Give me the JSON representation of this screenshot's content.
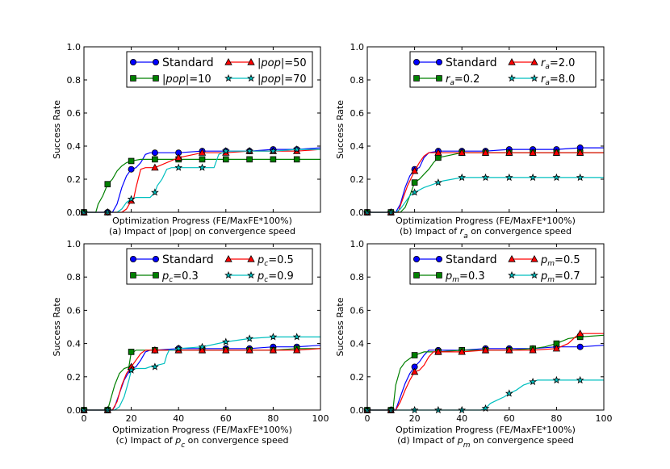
{
  "chart_data": [
    {
      "type": "line",
      "title": "",
      "xlabel": "Optimization Progress (FE/MaxFE*100%)",
      "ylabel": "Success Rate",
      "caption": "(a) Impact of |pop| on convergence speed",
      "xlim": [
        0,
        100
      ],
      "ylim": [
        0,
        1.0
      ],
      "x_ticks": [
        "0",
        "20",
        "40",
        "60",
        "80",
        "100"
      ],
      "y_ticks": [
        "0.0",
        "0.2",
        "0.4",
        "0.6",
        "0.8",
        "1.0"
      ],
      "show_x_tick_labels": false,
      "legend": "top-right",
      "series": [
        {
          "name": "Standard",
          "color": "#0000ff",
          "marker": "circle",
          "x": [
            0,
            10,
            12,
            14,
            16,
            18,
            20,
            22,
            24,
            26,
            28,
            30,
            40,
            50,
            60,
            70,
            80,
            90,
            100
          ],
          "y": [
            0,
            0,
            0,
            0.05,
            0.15,
            0.22,
            0.26,
            0.27,
            0.3,
            0.35,
            0.36,
            0.36,
            0.36,
            0.37,
            0.37,
            0.37,
            0.38,
            0.38,
            0.39
          ]
        },
        {
          "name": "|pop|=10",
          "color": "#008000",
          "marker": "square",
          "x": [
            0,
            5,
            6,
            8,
            10,
            12,
            14,
            16,
            18,
            20,
            24,
            30,
            40,
            50,
            60,
            70,
            80,
            90,
            100
          ],
          "y": [
            0,
            0,
            0.05,
            0.1,
            0.17,
            0.2,
            0.25,
            0.28,
            0.3,
            0.31,
            0.32,
            0.32,
            0.32,
            0.32,
            0.32,
            0.32,
            0.32,
            0.32,
            0.32
          ]
        },
        {
          "name": "|pop|=50",
          "color": "#ff0000",
          "marker": "triangle",
          "x": [
            0,
            12,
            14,
            16,
            18,
            20,
            21,
            22,
            24,
            26,
            28,
            30,
            40,
            50,
            60,
            70,
            80,
            90,
            100
          ],
          "y": [
            0,
            0,
            0,
            0,
            0.02,
            0.07,
            0.08,
            0.15,
            0.26,
            0.27,
            0.27,
            0.27,
            0.33,
            0.36,
            0.36,
            0.37,
            0.37,
            0.37,
            0.38
          ]
        },
        {
          "name": "|pop|=70",
          "color": "#00bfbf",
          "marker": "star",
          "x": [
            0,
            12,
            14,
            16,
            18,
            20,
            22,
            24,
            28,
            30,
            31,
            33,
            35,
            37,
            40,
            50,
            55,
            57,
            60,
            70,
            80,
            90,
            100
          ],
          "y": [
            0,
            0,
            0,
            0.02,
            0.06,
            0.08,
            0.09,
            0.09,
            0.09,
            0.12,
            0.16,
            0.2,
            0.26,
            0.27,
            0.27,
            0.27,
            0.27,
            0.35,
            0.37,
            0.37,
            0.37,
            0.38,
            0.38
          ]
        }
      ]
    },
    {
      "type": "line",
      "title": "",
      "xlabel": "Optimization Progress (FE/MaxFE*100%)",
      "ylabel": "Success Rate",
      "caption": "(b) Impact of r_a on convergence speed",
      "xlim": [
        0,
        100
      ],
      "ylim": [
        0,
        1.0
      ],
      "x_ticks": [
        "0",
        "20",
        "40",
        "60",
        "80",
        "100"
      ],
      "y_ticks": [
        "0.0",
        "0.2",
        "0.4",
        "0.6",
        "0.8",
        "1.0"
      ],
      "show_x_tick_labels": false,
      "legend": "top-right",
      "series": [
        {
          "name": "Standard",
          "color": "#0000ff",
          "marker": "circle",
          "x": [
            0,
            12,
            14,
            16,
            18,
            20,
            22,
            24,
            26,
            30,
            40,
            50,
            60,
            70,
            80,
            90,
            100
          ],
          "y": [
            0,
            0,
            0.05,
            0.15,
            0.22,
            0.26,
            0.27,
            0.33,
            0.36,
            0.37,
            0.37,
            0.37,
            0.38,
            0.38,
            0.38,
            0.39,
            0.39
          ]
        },
        {
          "name": "r_a=0.2",
          "color": "#008000",
          "marker": "square",
          "x": [
            0,
            14,
            16,
            18,
            20,
            22,
            24,
            26,
            28,
            30,
            40,
            50,
            60,
            70,
            80,
            90,
            100
          ],
          "y": [
            0,
            0,
            0.03,
            0.1,
            0.18,
            0.2,
            0.23,
            0.26,
            0.3,
            0.33,
            0.36,
            0.36,
            0.36,
            0.36,
            0.36,
            0.36,
            0.36
          ]
        },
        {
          "name": "r_a=2.0",
          "color": "#ff0000",
          "marker": "triangle",
          "x": [
            0,
            13,
            15,
            17,
            19,
            20,
            22,
            24,
            26,
            30,
            40,
            50,
            60,
            70,
            80,
            90,
            100
          ],
          "y": [
            0,
            0,
            0.08,
            0.16,
            0.22,
            0.25,
            0.3,
            0.34,
            0.36,
            0.36,
            0.36,
            0.36,
            0.36,
            0.36,
            0.36,
            0.36,
            0.36
          ]
        },
        {
          "name": "r_a=8.0",
          "color": "#00bfbf",
          "marker": "star",
          "x": [
            0,
            10,
            12,
            14,
            16,
            18,
            20,
            24,
            28,
            32,
            36,
            40,
            50,
            60,
            70,
            80,
            90,
            100
          ],
          "y": [
            0,
            0,
            0,
            0.02,
            0.06,
            0.1,
            0.12,
            0.15,
            0.17,
            0.19,
            0.2,
            0.21,
            0.21,
            0.21,
            0.21,
            0.21,
            0.21,
            0.21
          ]
        }
      ]
    },
    {
      "type": "line",
      "title": "",
      "xlabel": "Optimization Progress (FE/MaxFE*100%)",
      "ylabel": "Success Rate",
      "caption": "(c) Impact of p_c on convergence speed",
      "xlim": [
        0,
        100
      ],
      "ylim": [
        0,
        1.0
      ],
      "x_ticks": [
        "0",
        "20",
        "40",
        "60",
        "80",
        "100"
      ],
      "y_ticks": [
        "0.0",
        "0.2",
        "0.4",
        "0.6",
        "0.8",
        "1.0"
      ],
      "show_x_tick_labels": true,
      "legend": "top-right",
      "series": [
        {
          "name": "Standard",
          "color": "#0000ff",
          "marker": "circle",
          "x": [
            0,
            12,
            13,
            15,
            17,
            19,
            20,
            22,
            24,
            26,
            28,
            30,
            40,
            50,
            60,
            70,
            80,
            90,
            100
          ],
          "y": [
            0,
            0,
            0.02,
            0.1,
            0.18,
            0.23,
            0.25,
            0.26,
            0.3,
            0.35,
            0.36,
            0.36,
            0.37,
            0.37,
            0.37,
            0.37,
            0.38,
            0.38,
            0.39
          ]
        },
        {
          "name": "p_c=0.3",
          "color": "#008000",
          "marker": "square",
          "x": [
            0,
            10,
            11,
            13,
            15,
            17,
            19,
            20,
            21,
            22,
            24,
            26,
            30,
            40,
            50,
            60,
            70,
            80,
            90,
            100
          ],
          "y": [
            0,
            0,
            0.05,
            0.15,
            0.22,
            0.25,
            0.26,
            0.35,
            0.35,
            0.36,
            0.36,
            0.36,
            0.36,
            0.36,
            0.36,
            0.36,
            0.36,
            0.36,
            0.37,
            0.37
          ]
        },
        {
          "name": "p_c=0.5",
          "color": "#ff0000",
          "marker": "triangle",
          "x": [
            0,
            12,
            14,
            16,
            18,
            20,
            22,
            24,
            26,
            28,
            30,
            40,
            50,
            60,
            70,
            80,
            90,
            100
          ],
          "y": [
            0,
            0,
            0.05,
            0.15,
            0.22,
            0.26,
            0.3,
            0.34,
            0.36,
            0.36,
            0.36,
            0.36,
            0.36,
            0.36,
            0.36,
            0.36,
            0.36,
            0.37
          ]
        },
        {
          "name": "p_c=0.9",
          "color": "#00bfbf",
          "marker": "star",
          "x": [
            0,
            13,
            15,
            17,
            19,
            20,
            22,
            24,
            26,
            28,
            30,
            31,
            34,
            35,
            36,
            38,
            40,
            50,
            60,
            70,
            80,
            90,
            100
          ],
          "y": [
            0,
            0,
            0.02,
            0.08,
            0.18,
            0.24,
            0.25,
            0.25,
            0.25,
            0.26,
            0.26,
            0.27,
            0.28,
            0.33,
            0.36,
            0.36,
            0.37,
            0.38,
            0.41,
            0.43,
            0.44,
            0.44,
            0.44
          ]
        }
      ]
    },
    {
      "type": "line",
      "title": "",
      "xlabel": "Optimization Progress (FE/MaxFE*100%)",
      "ylabel": "Success Rate",
      "caption": "(d) Impact of p_m on convergence speed",
      "xlim": [
        0,
        100
      ],
      "ylim": [
        0,
        1.0
      ],
      "x_ticks": [
        "0",
        "20",
        "40",
        "60",
        "80",
        "100"
      ],
      "y_ticks": [
        "0.0",
        "0.2",
        "0.4",
        "0.6",
        "0.8",
        "1.0"
      ],
      "show_x_tick_labels": true,
      "legend": "top-right",
      "series": [
        {
          "name": "Standard",
          "color": "#0000ff",
          "marker": "circle",
          "x": [
            0,
            12,
            14,
            16,
            18,
            20,
            22,
            24,
            26,
            30,
            40,
            50,
            60,
            70,
            80,
            90,
            100
          ],
          "y": [
            0,
            0,
            0.08,
            0.16,
            0.22,
            0.26,
            0.29,
            0.33,
            0.36,
            0.36,
            0.36,
            0.37,
            0.37,
            0.37,
            0.38,
            0.38,
            0.39
          ]
        },
        {
          "name": "p_m=0.3",
          "color": "#008000",
          "marker": "square",
          "x": [
            0,
            10,
            11,
            12,
            14,
            16,
            18,
            20,
            22,
            24,
            28,
            30,
            40,
            50,
            60,
            70,
            75,
            80,
            85,
            90,
            100
          ],
          "y": [
            0,
            0,
            0.02,
            0.15,
            0.25,
            0.29,
            0.31,
            0.33,
            0.34,
            0.35,
            0.35,
            0.35,
            0.36,
            0.36,
            0.36,
            0.37,
            0.38,
            0.4,
            0.43,
            0.44,
            0.45
          ]
        },
        {
          "name": "p_m=0.5",
          "color": "#ff0000",
          "marker": "triangle",
          "x": [
            0,
            12,
            14,
            16,
            18,
            20,
            22,
            24,
            26,
            28,
            30,
            40,
            50,
            60,
            70,
            80,
            85,
            88,
            90,
            100
          ],
          "y": [
            0,
            0,
            0.05,
            0.12,
            0.18,
            0.23,
            0.24,
            0.27,
            0.32,
            0.35,
            0.35,
            0.35,
            0.36,
            0.36,
            0.36,
            0.37,
            0.4,
            0.44,
            0.46,
            0.46
          ]
        },
        {
          "name": "p_m=0.7",
          "color": "#00bfbf",
          "marker": "star",
          "x": [
            0,
            10,
            20,
            30,
            40,
            48,
            50,
            52,
            55,
            58,
            60,
            63,
            66,
            70,
            72,
            80,
            90,
            100
          ],
          "y": [
            0,
            0,
            0,
            0,
            0,
            0,
            0.01,
            0.04,
            0.06,
            0.08,
            0.1,
            0.12,
            0.15,
            0.17,
            0.18,
            0.18,
            0.18,
            0.18
          ]
        }
      ]
    }
  ]
}
